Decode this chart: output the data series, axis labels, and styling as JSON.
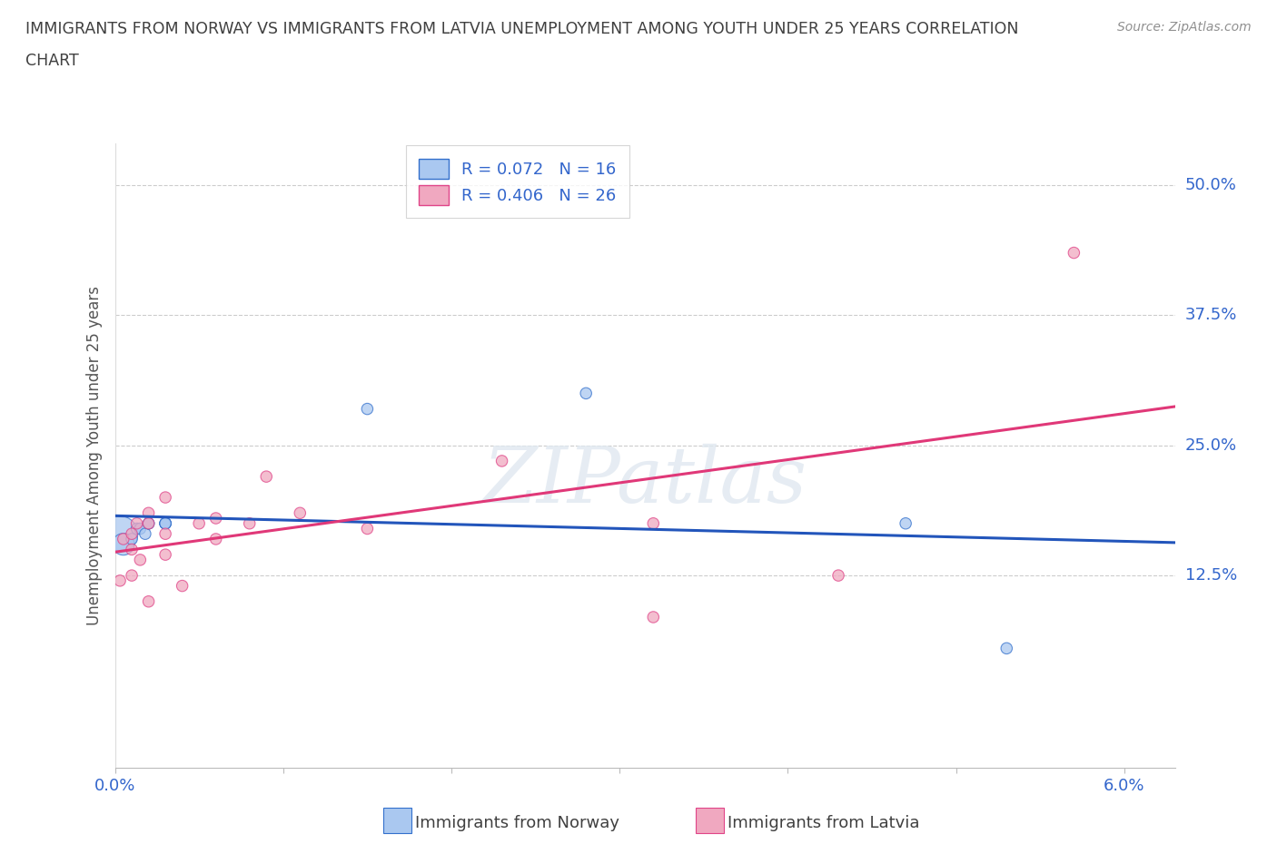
{
  "title_line1": "IMMIGRANTS FROM NORWAY VS IMMIGRANTS FROM LATVIA UNEMPLOYMENT AMONG YOUTH UNDER 25 YEARS CORRELATION",
  "title_line2": "CHART",
  "source": "Source: ZipAtlas.com",
  "ylabel": "Unemployment Among Youth under 25 years",
  "legend_norway": "Immigrants from Norway",
  "legend_latvia": "Immigrants from Latvia",
  "xlim": [
    0.0,
    0.063
  ],
  "ylim": [
    -0.06,
    0.54
  ],
  "ytick_vals": [
    0.0,
    0.125,
    0.25,
    0.375,
    0.5
  ],
  "ytick_labels": [
    "",
    "12.5%",
    "25.0%",
    "37.5%",
    "50.0%"
  ],
  "xtick_vals": [
    0.0,
    0.01,
    0.02,
    0.03,
    0.04,
    0.05,
    0.06
  ],
  "xtick_labels": [
    "0.0%",
    "",
    "",
    "",
    "",
    "",
    "6.0%"
  ],
  "norway_color": "#aac8f0",
  "latvia_color": "#f0a8c0",
  "norway_edge_color": "#3370cc",
  "latvia_edge_color": "#e04488",
  "norway_line_color": "#2255bb",
  "latvia_line_color": "#e03878",
  "norway_R": 0.072,
  "norway_N": 16,
  "latvia_R": 0.406,
  "latvia_N": 26,
  "watermark_text": "ZIPatlas",
  "norway_x": [
    0.0003,
    0.0005,
    0.001,
    0.0013,
    0.0015,
    0.0018,
    0.002,
    0.002,
    0.003,
    0.003,
    0.003,
    0.003,
    0.015,
    0.028,
    0.047,
    0.053
  ],
  "norway_y": [
    0.165,
    0.155,
    0.16,
    0.17,
    0.17,
    0.165,
    0.175,
    0.175,
    0.175,
    0.175,
    0.175,
    0.175,
    0.285,
    0.3,
    0.175,
    0.055
  ],
  "norway_sizes": [
    800,
    300,
    80,
    80,
    80,
    80,
    80,
    80,
    80,
    80,
    80,
    80,
    80,
    80,
    80,
    80
  ],
  "latvia_x": [
    0.0003,
    0.0005,
    0.001,
    0.001,
    0.001,
    0.0013,
    0.0015,
    0.002,
    0.002,
    0.002,
    0.003,
    0.003,
    0.003,
    0.004,
    0.005,
    0.006,
    0.006,
    0.008,
    0.009,
    0.011,
    0.015,
    0.023,
    0.032,
    0.032,
    0.043,
    0.057
  ],
  "latvia_y": [
    0.12,
    0.16,
    0.165,
    0.15,
    0.125,
    0.175,
    0.14,
    0.185,
    0.175,
    0.1,
    0.2,
    0.165,
    0.145,
    0.115,
    0.175,
    0.18,
    0.16,
    0.175,
    0.22,
    0.185,
    0.17,
    0.235,
    0.085,
    0.175,
    0.125,
    0.435
  ],
  "latvia_sizes": [
    80,
    80,
    80,
    80,
    80,
    80,
    80,
    80,
    80,
    80,
    80,
    80,
    80,
    80,
    80,
    80,
    80,
    80,
    80,
    80,
    80,
    80,
    80,
    80,
    80,
    80
  ],
  "grid_color": "#cccccc",
  "bg_color": "#ffffff",
  "title_color": "#404040",
  "source_color": "#909090",
  "tick_color": "#3366cc",
  "ylabel_color": "#555555"
}
